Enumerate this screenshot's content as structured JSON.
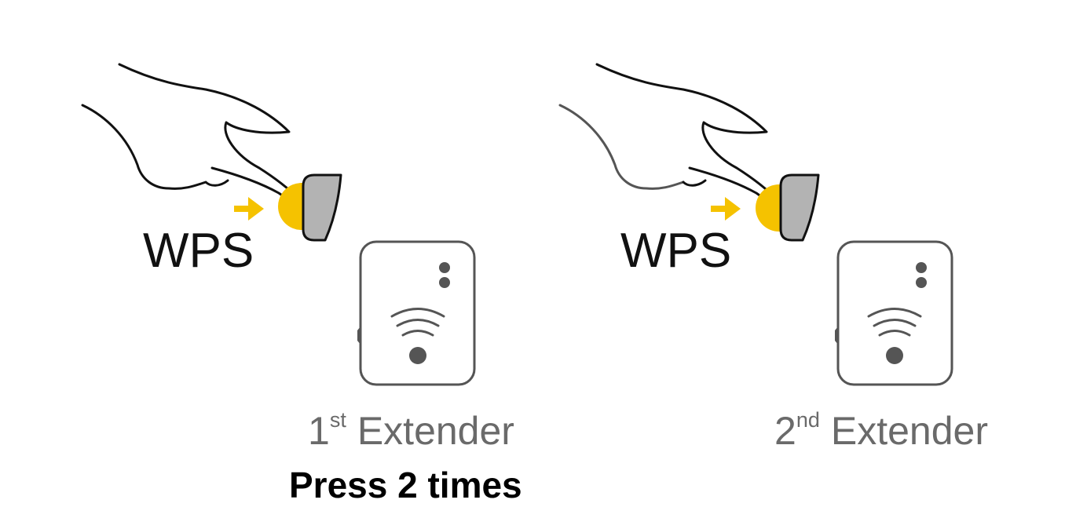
{
  "colors": {
    "accent_yellow": "#F5C200",
    "device_outline": "#555555",
    "button_fill": "#B3B3B3",
    "hand_stroke": "#111111"
  },
  "icons": [
    "hand-pointing-icon",
    "arrow-right-icon",
    "wifi-icon"
  ],
  "steps": [
    {
      "button_label": "WPS",
      "device_number": "1",
      "device_ordinal_suffix": "st",
      "device_name": "Extender",
      "instruction": "Press 2 times"
    },
    {
      "button_label": "WPS",
      "device_number": "2",
      "device_ordinal_suffix": "nd",
      "device_name": "Extender"
    }
  ]
}
